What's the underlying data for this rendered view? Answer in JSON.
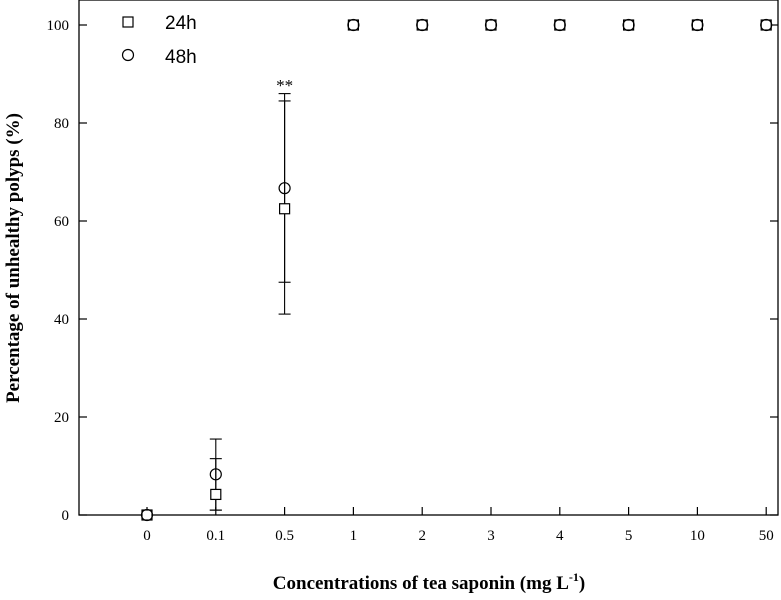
{
  "chart_data": {
    "type": "scatter",
    "xlabel_main": "Concentrations of tea saponin (mg L",
    "xlabel_sup": "-1",
    "xlabel_end": ")",
    "ylabel": "Percentage of unhealthy polyps (%)",
    "ylim": [
      0,
      100
    ],
    "yticks": [
      "0",
      "20",
      "40",
      "60",
      "80",
      "100"
    ],
    "categories": [
      "0",
      "0.1",
      "0.5",
      "1",
      "2",
      "3",
      "4",
      "5",
      "10",
      "50"
    ],
    "series": [
      {
        "name": "24h",
        "marker": "square",
        "values": [
          0,
          4.2,
          62.5,
          100,
          100,
          100,
          100,
          100,
          100,
          100
        ],
        "err_low": [
          0,
          1.0,
          47.5,
          100,
          100,
          100,
          100,
          100,
          100,
          100
        ],
        "err_high": [
          0,
          11.5,
          84.5,
          100,
          100,
          100,
          100,
          100,
          100,
          100
        ]
      },
      {
        "name": "48h",
        "marker": "circle",
        "values": [
          0,
          8.3,
          66.7,
          100,
          100,
          100,
          100,
          100,
          100,
          100
        ],
        "err_low": [
          0,
          1.0,
          41.0,
          100,
          100,
          100,
          100,
          100,
          100,
          100
        ],
        "err_high": [
          0,
          15.5,
          86.0,
          100,
          100,
          100,
          100,
          100,
          100,
          100
        ]
      }
    ],
    "annotations": [
      {
        "text": "**",
        "category": "0.5",
        "y": 86.5
      }
    ],
    "legend_position": "top-left",
    "grid": false,
    "color": "#000000"
  }
}
